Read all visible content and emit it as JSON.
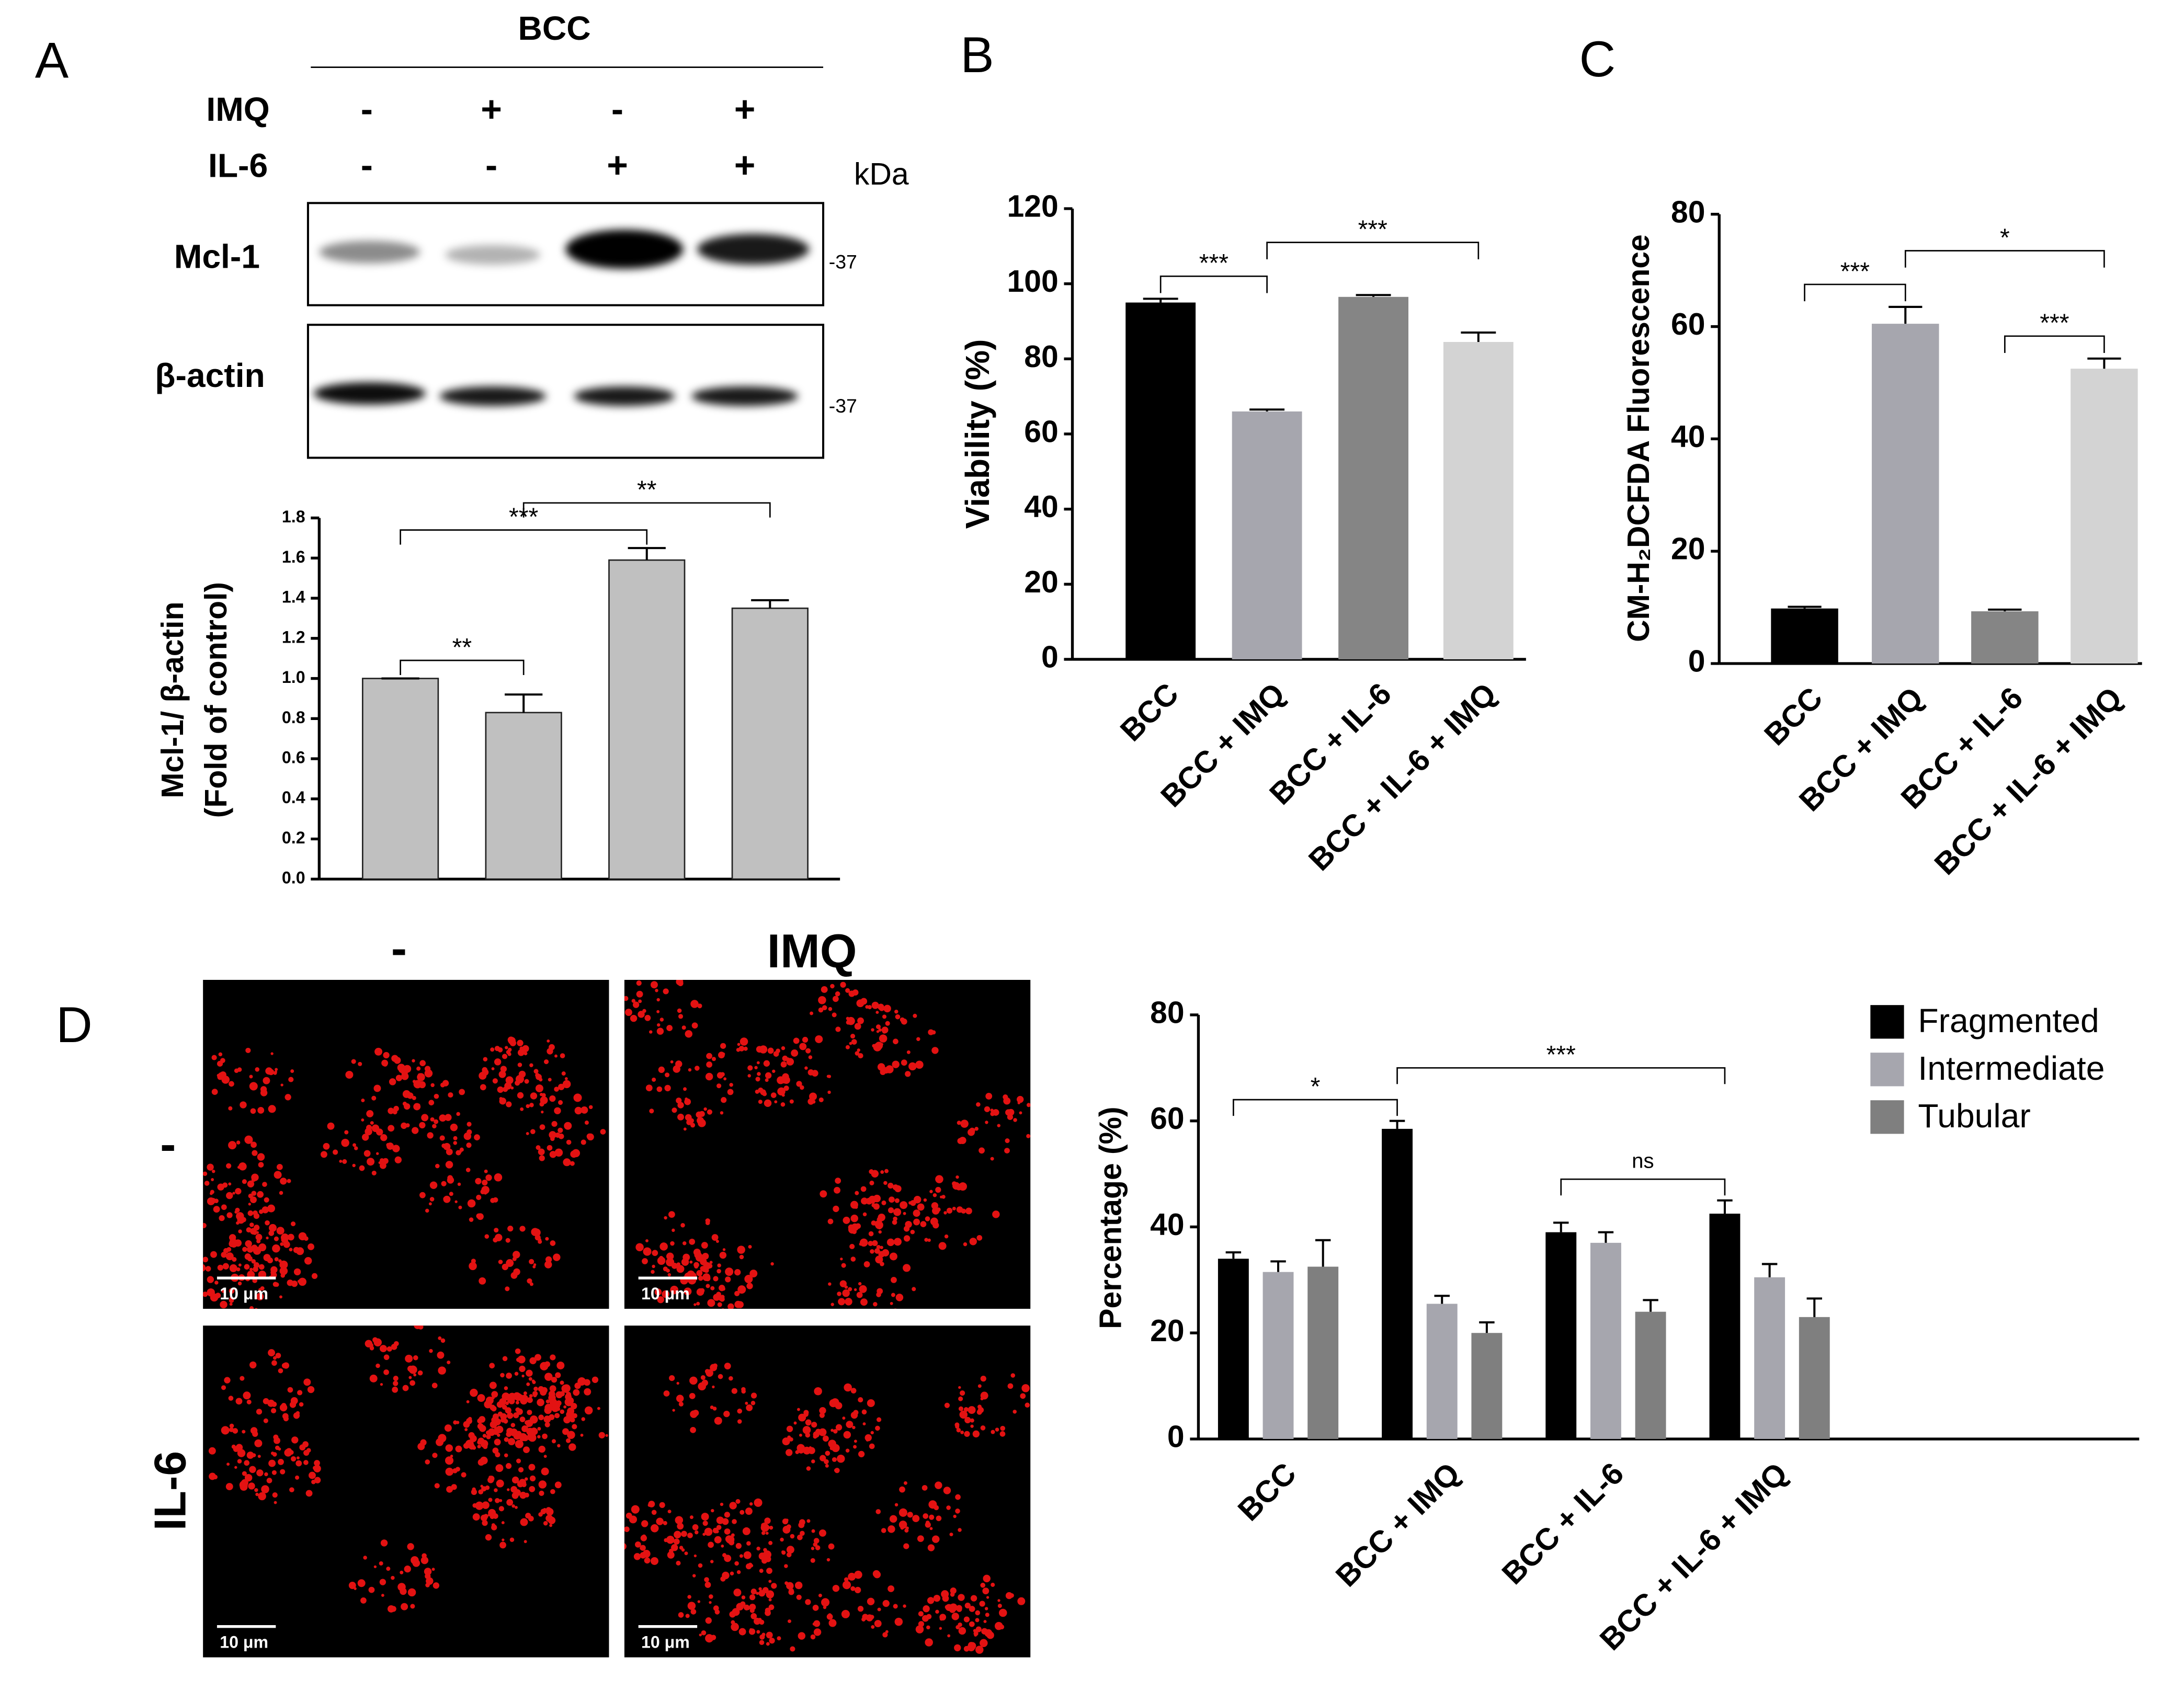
{
  "chart_data": [
    {
      "type": "bar",
      "ylabel": [
        "Mcl-1/ β-actin",
        "(Fold of control)"
      ],
      "categories": [
        null,
        null,
        null,
        null
      ],
      "values": [
        1.0,
        0.83,
        1.59,
        1.35
      ],
      "errors": [
        0,
        0.09,
        0.06,
        0.04
      ],
      "colors": [
        "#c0c0c0",
        "#c0c0c0",
        "#c0c0c0",
        "#c0c0c0"
      ],
      "ylim": [
        0,
        1.8
      ],
      "yticks": [
        {
          "value": 0,
          "label": "0.0"
        },
        0.2,
        0.4,
        0.6,
        0.8,
        {
          "value": 1,
          "label": "1.0"
        },
        1.2,
        1.4,
        1.6,
        1.8
      ],
      "annotations": [
        {
          "from": 0,
          "to": 1,
          "label": "**"
        },
        {
          "from": 0,
          "to": 2,
          "label": "***"
        },
        {
          "from": 1,
          "to": 3,
          "label": "**"
        }
      ]
    },
    {
      "type": "bar",
      "ylabel": "Viability (%)",
      "categories": [
        "BCC",
        "BCC + IMQ",
        "BCC + IL-6",
        "BCC + IL-6 + IMQ"
      ],
      "values": [
        95,
        66,
        96.5,
        84.5
      ],
      "errors": [
        1,
        0.5,
        0.5,
        2.5
      ],
      "colors": [
        "#000000",
        "#a6a6ae",
        "#858585",
        "#d3d3d3"
      ],
      "ylim": [
        0,
        120
      ],
      "yticks": [
        0,
        20,
        40,
        60,
        80,
        100,
        120
      ],
      "annotations": [
        {
          "from": 0,
          "to": 1,
          "label": "***"
        },
        {
          "from": 1,
          "to": 3,
          "label": "***"
        }
      ]
    },
    {
      "type": "bar",
      "ylabel": "CM-H₂DCFDA Fluorescence",
      "categories": [
        "BCC",
        "BCC + IMQ",
        "BCC + IL-6",
        "BCC + IL-6 + IMQ"
      ],
      "values": [
        9.8,
        60.5,
        9.3,
        52.5
      ],
      "errors": [
        0.3,
        3,
        0.3,
        1.8
      ],
      "colors": [
        "#000000",
        "#a6a6ae",
        "#858585",
        "#d3d3d3"
      ],
      "ylim": [
        0,
        80
      ],
      "yticks": [
        0,
        20,
        40,
        60,
        80
      ],
      "annotations": [
        {
          "from": 0,
          "to": 1,
          "label": "***"
        },
        {
          "from": 2,
          "to": 3,
          "label": "***"
        },
        {
          "from": 1,
          "to": 3,
          "label": "*"
        }
      ]
    },
    {
      "type": "grouped_bar",
      "ylabel": "Percentage (%)",
      "categories": [
        "BCC",
        "BCC + IMQ",
        "BCC + IL-6",
        "BCC + IL-6 + IMQ"
      ],
      "series": [
        {
          "name": "Fragmented",
          "color": "#000000",
          "values": [
            34,
            58.5,
            39,
            42.5
          ],
          "errors": [
            1.2,
            1.5,
            1.8,
            2.5
          ]
        },
        {
          "name": "Intermediate",
          "color": "#a6a6ae",
          "values": [
            31.5,
            25.5,
            37,
            30.5
          ],
          "errors": [
            2,
            1.5,
            2,
            2.5
          ]
        },
        {
          "name": "Tubular",
          "color": "#7f7f7f",
          "values": [
            32.5,
            20,
            24,
            23
          ],
          "errors": [
            5,
            2,
            2.2,
            3.5
          ]
        }
      ],
      "ylim": [
        0,
        80
      ],
      "yticks": [
        0,
        20,
        40,
        60,
        80
      ],
      "legend": "right",
      "annotations": [
        {
          "from": 0,
          "to": 1,
          "label": "*"
        },
        {
          "from": 2,
          "to": 3,
          "label": "ns"
        },
        {
          "from": 1,
          "to": 3,
          "label": "***"
        }
      ]
    }
  ],
  "figure": {
    "panel_labels": [
      "A",
      "B",
      "C",
      "D"
    ],
    "blot": {
      "group": "BCC",
      "rows": [
        {
          "label": "IMQ",
          "signs": [
            "-",
            "+",
            "-",
            "+"
          ]
        },
        {
          "label": "IL-6",
          "signs": [
            "-",
            "-",
            "+",
            "+"
          ]
        }
      ],
      "unit": "kDa",
      "bands": [
        {
          "label": "Mcl-1",
          "marker": "-37"
        },
        {
          "label": "β-actin",
          "marker": "-37"
        }
      ]
    },
    "micrographs": {
      "columns": [
        "-",
        "IMQ"
      ],
      "rows": [
        "-",
        "IL-6"
      ],
      "scale_bar": "10 μm"
    }
  }
}
